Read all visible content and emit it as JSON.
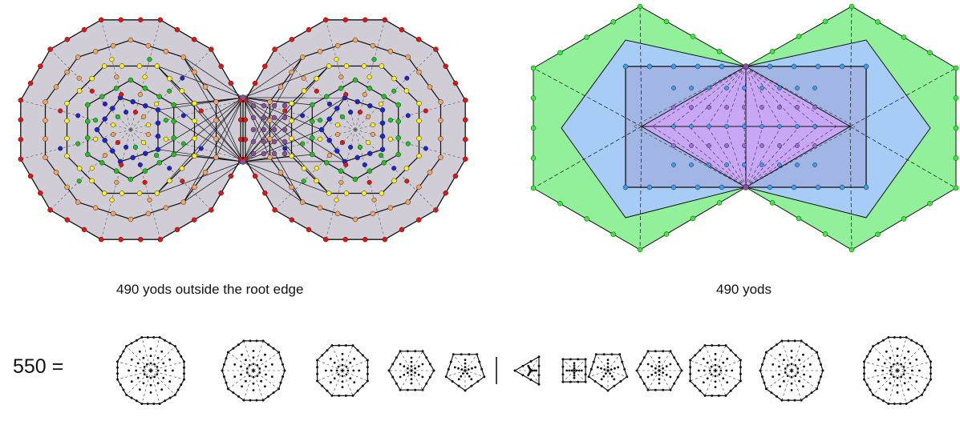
{
  "captions": {
    "left": "490 yods outside the root edge",
    "right": "490 yods"
  },
  "equation": {
    "label": "550 ="
  },
  "polygon_sequence": {
    "left_sides": [
      12,
      10,
      8,
      6,
      5
    ],
    "right_sides": [
      3,
      4,
      5,
      6,
      8,
      10,
      12
    ]
  },
  "colors": {
    "grey_fill": "#d0cdd6",
    "red_yod": "#e8130f",
    "orange_yod": "#f5a45c",
    "yellow_yod": "#ffef1a",
    "green_yod": "#1bc41b",
    "blue_yod": "#1a23d6",
    "purple_yod": "#8a4f98",
    "green_fill": "#92f09a",
    "blue_fill": "#a7cdf7",
    "violet_fill": "#c8a7f6",
    "light_green_yod": "#33ee33",
    "light_blue_yod": "#3f9bee",
    "violet_yod": "#9f6ad9"
  }
}
